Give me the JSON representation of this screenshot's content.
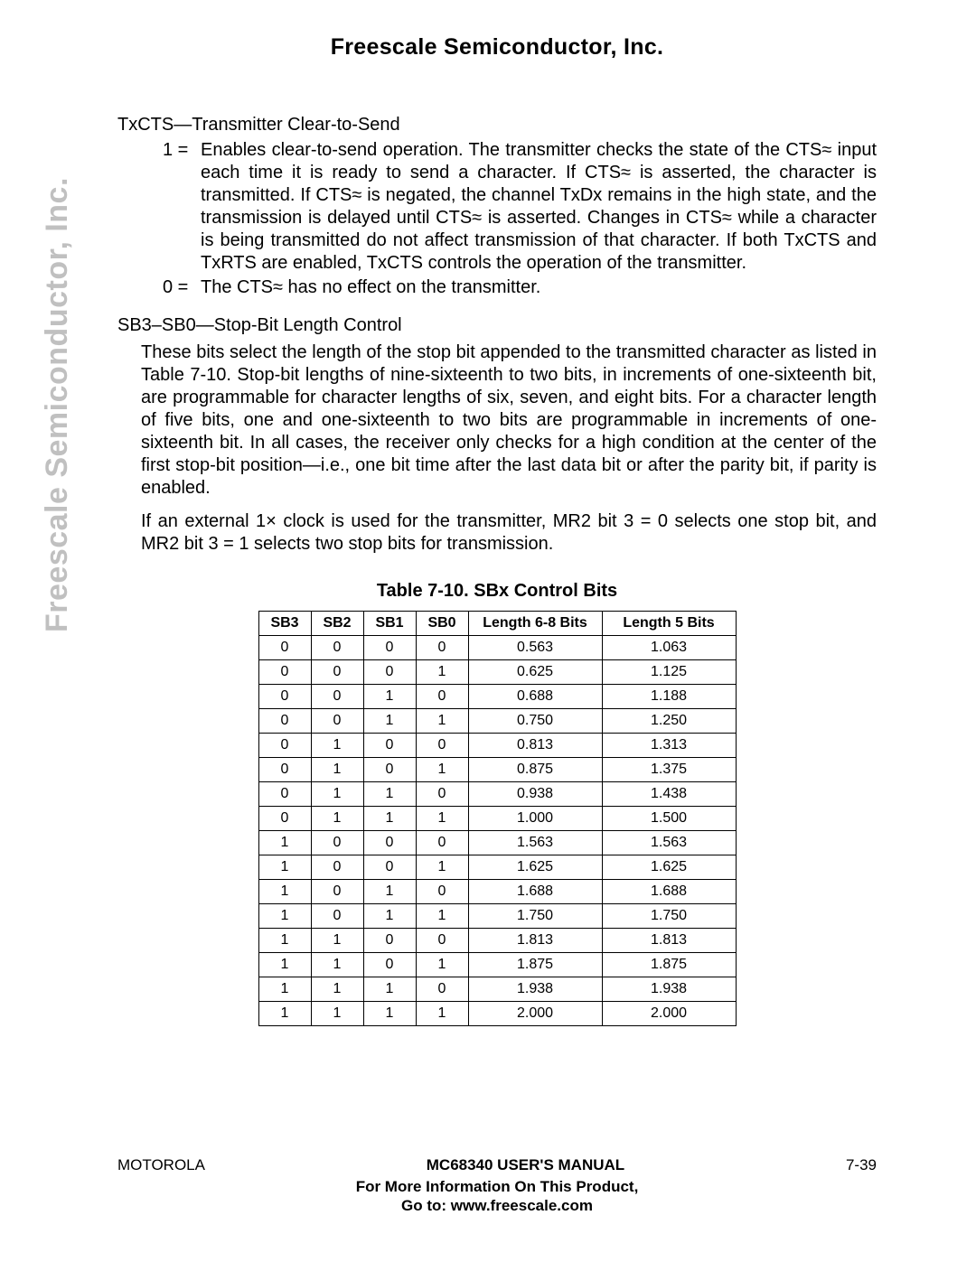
{
  "header": {
    "company": "Freescale Semiconductor, Inc."
  },
  "watermark": "Freescale Semiconductor, Inc.",
  "sections": {
    "txcts": {
      "title": "TxCTS—Transmitter Clear-to-Send",
      "item1_label": "1 =",
      "item1_body": "Enables clear-to-send operation. The transmitter checks the state of the CTS≈ input each time it is ready to send a character. If CTS≈ is asserted, the character is transmitted. If CTS≈ is negated, the channel TxDx remains in the high state, and the transmission is delayed until CTS≈ is asserted. Changes in CTS≈ while a character is being transmitted do not affect transmission of that character. If both TxCTS and TxRTS are enabled, TxCTS controls the operation of the transmitter.",
      "item0_label": "0 =",
      "item0_body": "The CTS≈ has no effect on the transmitter."
    },
    "sb": {
      "title": "SB3–SB0—Stop-Bit Length Control",
      "para1": "These bits select the length of the stop bit appended to the transmitted character as listed in Table 7-10. Stop-bit lengths of nine-sixteenth to two bits, in increments of one-sixteenth bit, are programmable for character lengths of six, seven, and eight bits. For a character length of five bits, one and one-sixteenth to two bits are programmable in increments of one-sixteenth bit. In all cases, the receiver only checks for a high condition at the center of the first stop-bit position—i.e., one bit time after the last data bit or after the parity bit, if parity is enabled.",
      "para2": "If an external 1× clock is used for the transmitter, MR2 bit 3 = 0 selects one stop bit, and MR2 bit 3 = 1 selects two stop bits for transmission."
    }
  },
  "table": {
    "caption": "Table 7-10. SBx Control Bits",
    "columns": [
      "SB3",
      "SB2",
      "SB1",
      "SB0",
      "Length 6-8 Bits",
      "Length 5 Bits"
    ],
    "rows": [
      [
        "0",
        "0",
        "0",
        "0",
        "0.563",
        "1.063"
      ],
      [
        "0",
        "0",
        "0",
        "1",
        "0.625",
        "1.125"
      ],
      [
        "0",
        "0",
        "1",
        "0",
        "0.688",
        "1.188"
      ],
      [
        "0",
        "0",
        "1",
        "1",
        "0.750",
        "1.250"
      ],
      [
        "0",
        "1",
        "0",
        "0",
        "0.813",
        "1.313"
      ],
      [
        "0",
        "1",
        "0",
        "1",
        "0.875",
        "1.375"
      ],
      [
        "0",
        "1",
        "1",
        "0",
        "0.938",
        "1.438"
      ],
      [
        "0",
        "1",
        "1",
        "1",
        "1.000",
        "1.500"
      ],
      [
        "1",
        "0",
        "0",
        "0",
        "1.563",
        "1.563"
      ],
      [
        "1",
        "0",
        "0",
        "1",
        "1.625",
        "1.625"
      ],
      [
        "1",
        "0",
        "1",
        "0",
        "1.688",
        "1.688"
      ],
      [
        "1",
        "0",
        "1",
        "1",
        "1.750",
        "1.750"
      ],
      [
        "1",
        "1",
        "0",
        "0",
        "1.813",
        "1.813"
      ],
      [
        "1",
        "1",
        "0",
        "1",
        "1.875",
        "1.875"
      ],
      [
        "1",
        "1",
        "1",
        "0",
        "1.938",
        "1.938"
      ],
      [
        "1",
        "1",
        "1",
        "1",
        "2.000",
        "2.000"
      ]
    ]
  },
  "footer": {
    "left": "MOTOROLA",
    "center": "MC68340 USER'S MANUAL",
    "right": "7-39",
    "sub1": "For More Information On This Product,",
    "sub2": "Go to: www.freescale.com"
  }
}
